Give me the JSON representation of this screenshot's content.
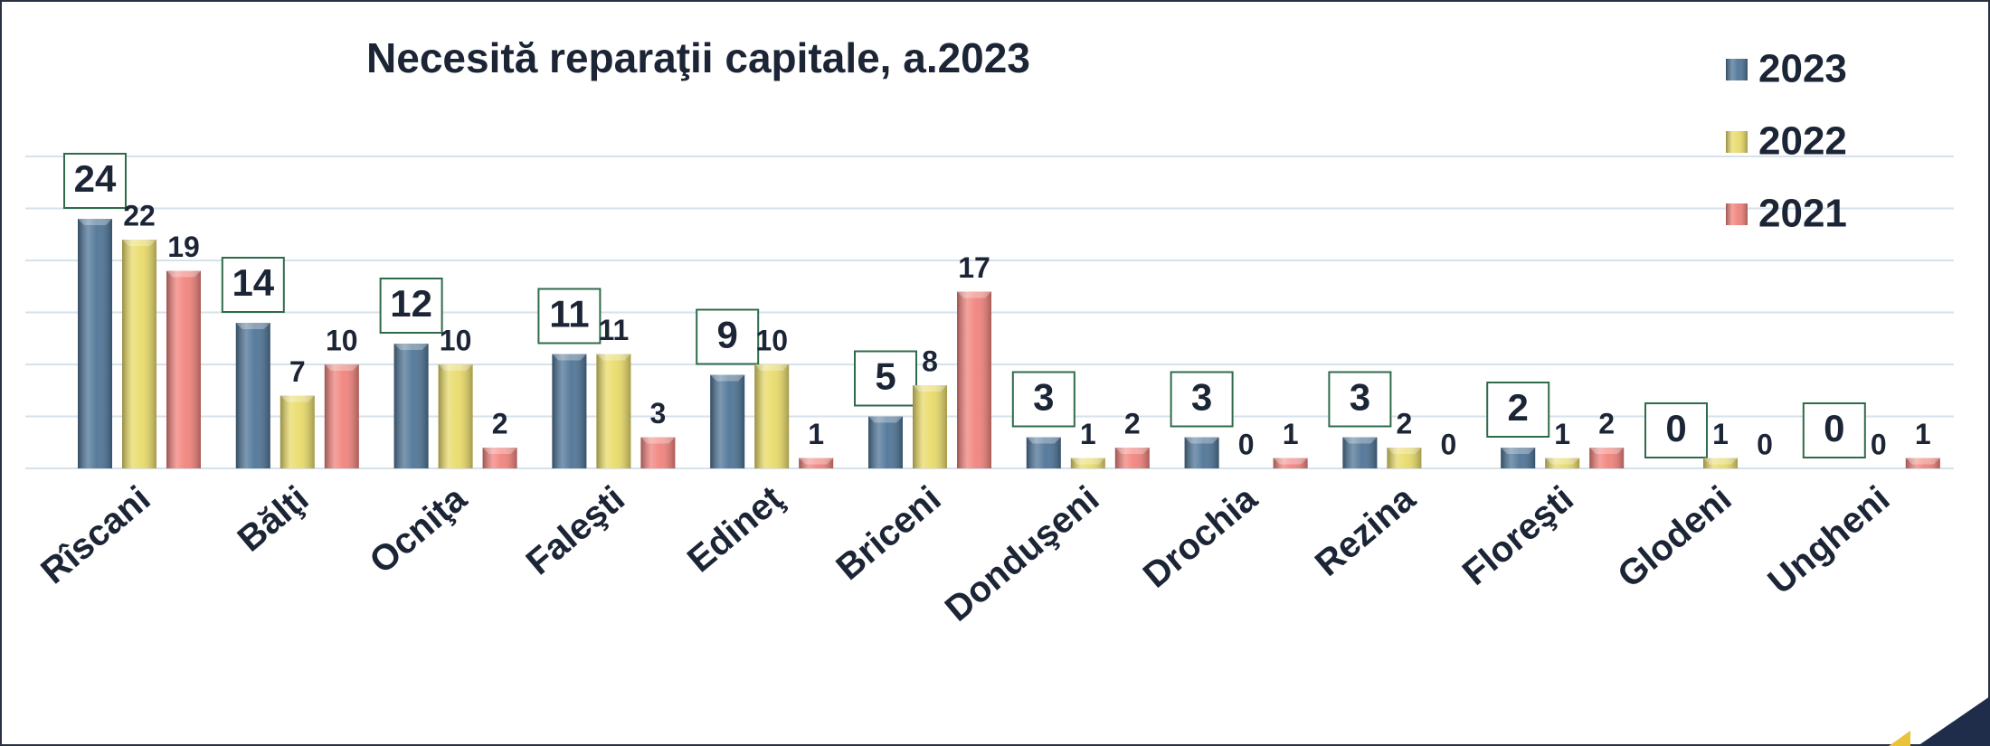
{
  "chart_data": {
    "type": "bar",
    "title": "Necesită reparaţii capitale, a.2023",
    "categories": [
      "Rîscani",
      "Bălţi",
      "Ocniţa",
      "Faleşti",
      "Edineţ",
      "Briceni",
      "Donduşeni",
      "Drochia",
      "Rezina",
      "Floreşti",
      "Glodeni",
      "Ungheni"
    ],
    "series": [
      {
        "name": "2023",
        "color": "#4f7597",
        "values": [
          24,
          14,
          12,
          11,
          9,
          5,
          3,
          3,
          3,
          2,
          0,
          0
        ]
      },
      {
        "name": "2022",
        "color": "#e9db6a",
        "values": [
          22,
          7,
          10,
          11,
          10,
          8,
          1,
          0,
          2,
          1,
          1,
          0
        ]
      },
      {
        "name": "2021",
        "color": "#f1837d",
        "values": [
          19,
          10,
          2,
          3,
          1,
          17,
          2,
          1,
          0,
          2,
          0,
          1
        ]
      }
    ],
    "ylim": [
      0,
      30
    ],
    "yticks": [
      0,
      5,
      10,
      15,
      20,
      25,
      30
    ],
    "grid": true,
    "legend": "top-right"
  }
}
